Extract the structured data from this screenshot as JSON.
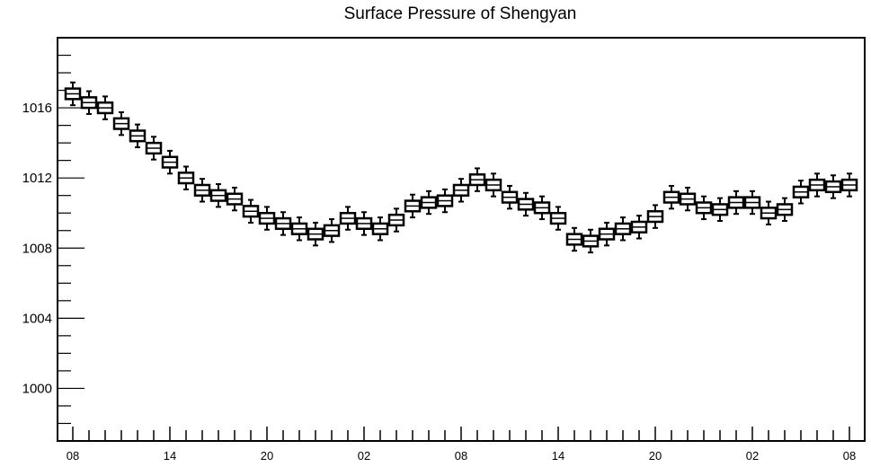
{
  "chart_data": {
    "type": "boxplot",
    "title": "Surface Pressure of Shengyan",
    "xlabel": "",
    "ylabel": "",
    "ylim": [
      997,
      1020
    ],
    "y_ticks": [
      1000,
      1004,
      1008,
      1012,
      1016
    ],
    "x_tick_labels": [
      "08",
      "14",
      "20",
      "02",
      "08",
      "14",
      "20",
      "02",
      "08"
    ],
    "x_tick_every": 6,
    "grid": false,
    "series": [
      {
        "medians": [
          1016.8,
          1016.3,
          1016.0,
          1015.1,
          1014.4,
          1013.7,
          1012.9,
          1012.0,
          1011.3,
          1011.0,
          1010.8,
          1010.1,
          1009.7,
          1009.4,
          1009.1,
          1008.8,
          1009.0,
          1009.7,
          1009.4,
          1009.1,
          1009.6,
          1010.4,
          1010.6,
          1010.7,
          1011.3,
          1011.9,
          1011.6,
          1010.9,
          1010.5,
          1010.3,
          1009.7,
          1008.5,
          1008.4,
          1008.8,
          1009.1,
          1009.2,
          1009.8,
          1010.9,
          1010.8,
          1010.3,
          1010.2,
          1010.6,
          1010.6,
          1010.0,
          1010.2,
          1011.2,
          1011.6,
          1011.5,
          1011.6
        ],
        "box_half_height": 0.3,
        "whisker_half_length": 0.65
      }
    ]
  }
}
